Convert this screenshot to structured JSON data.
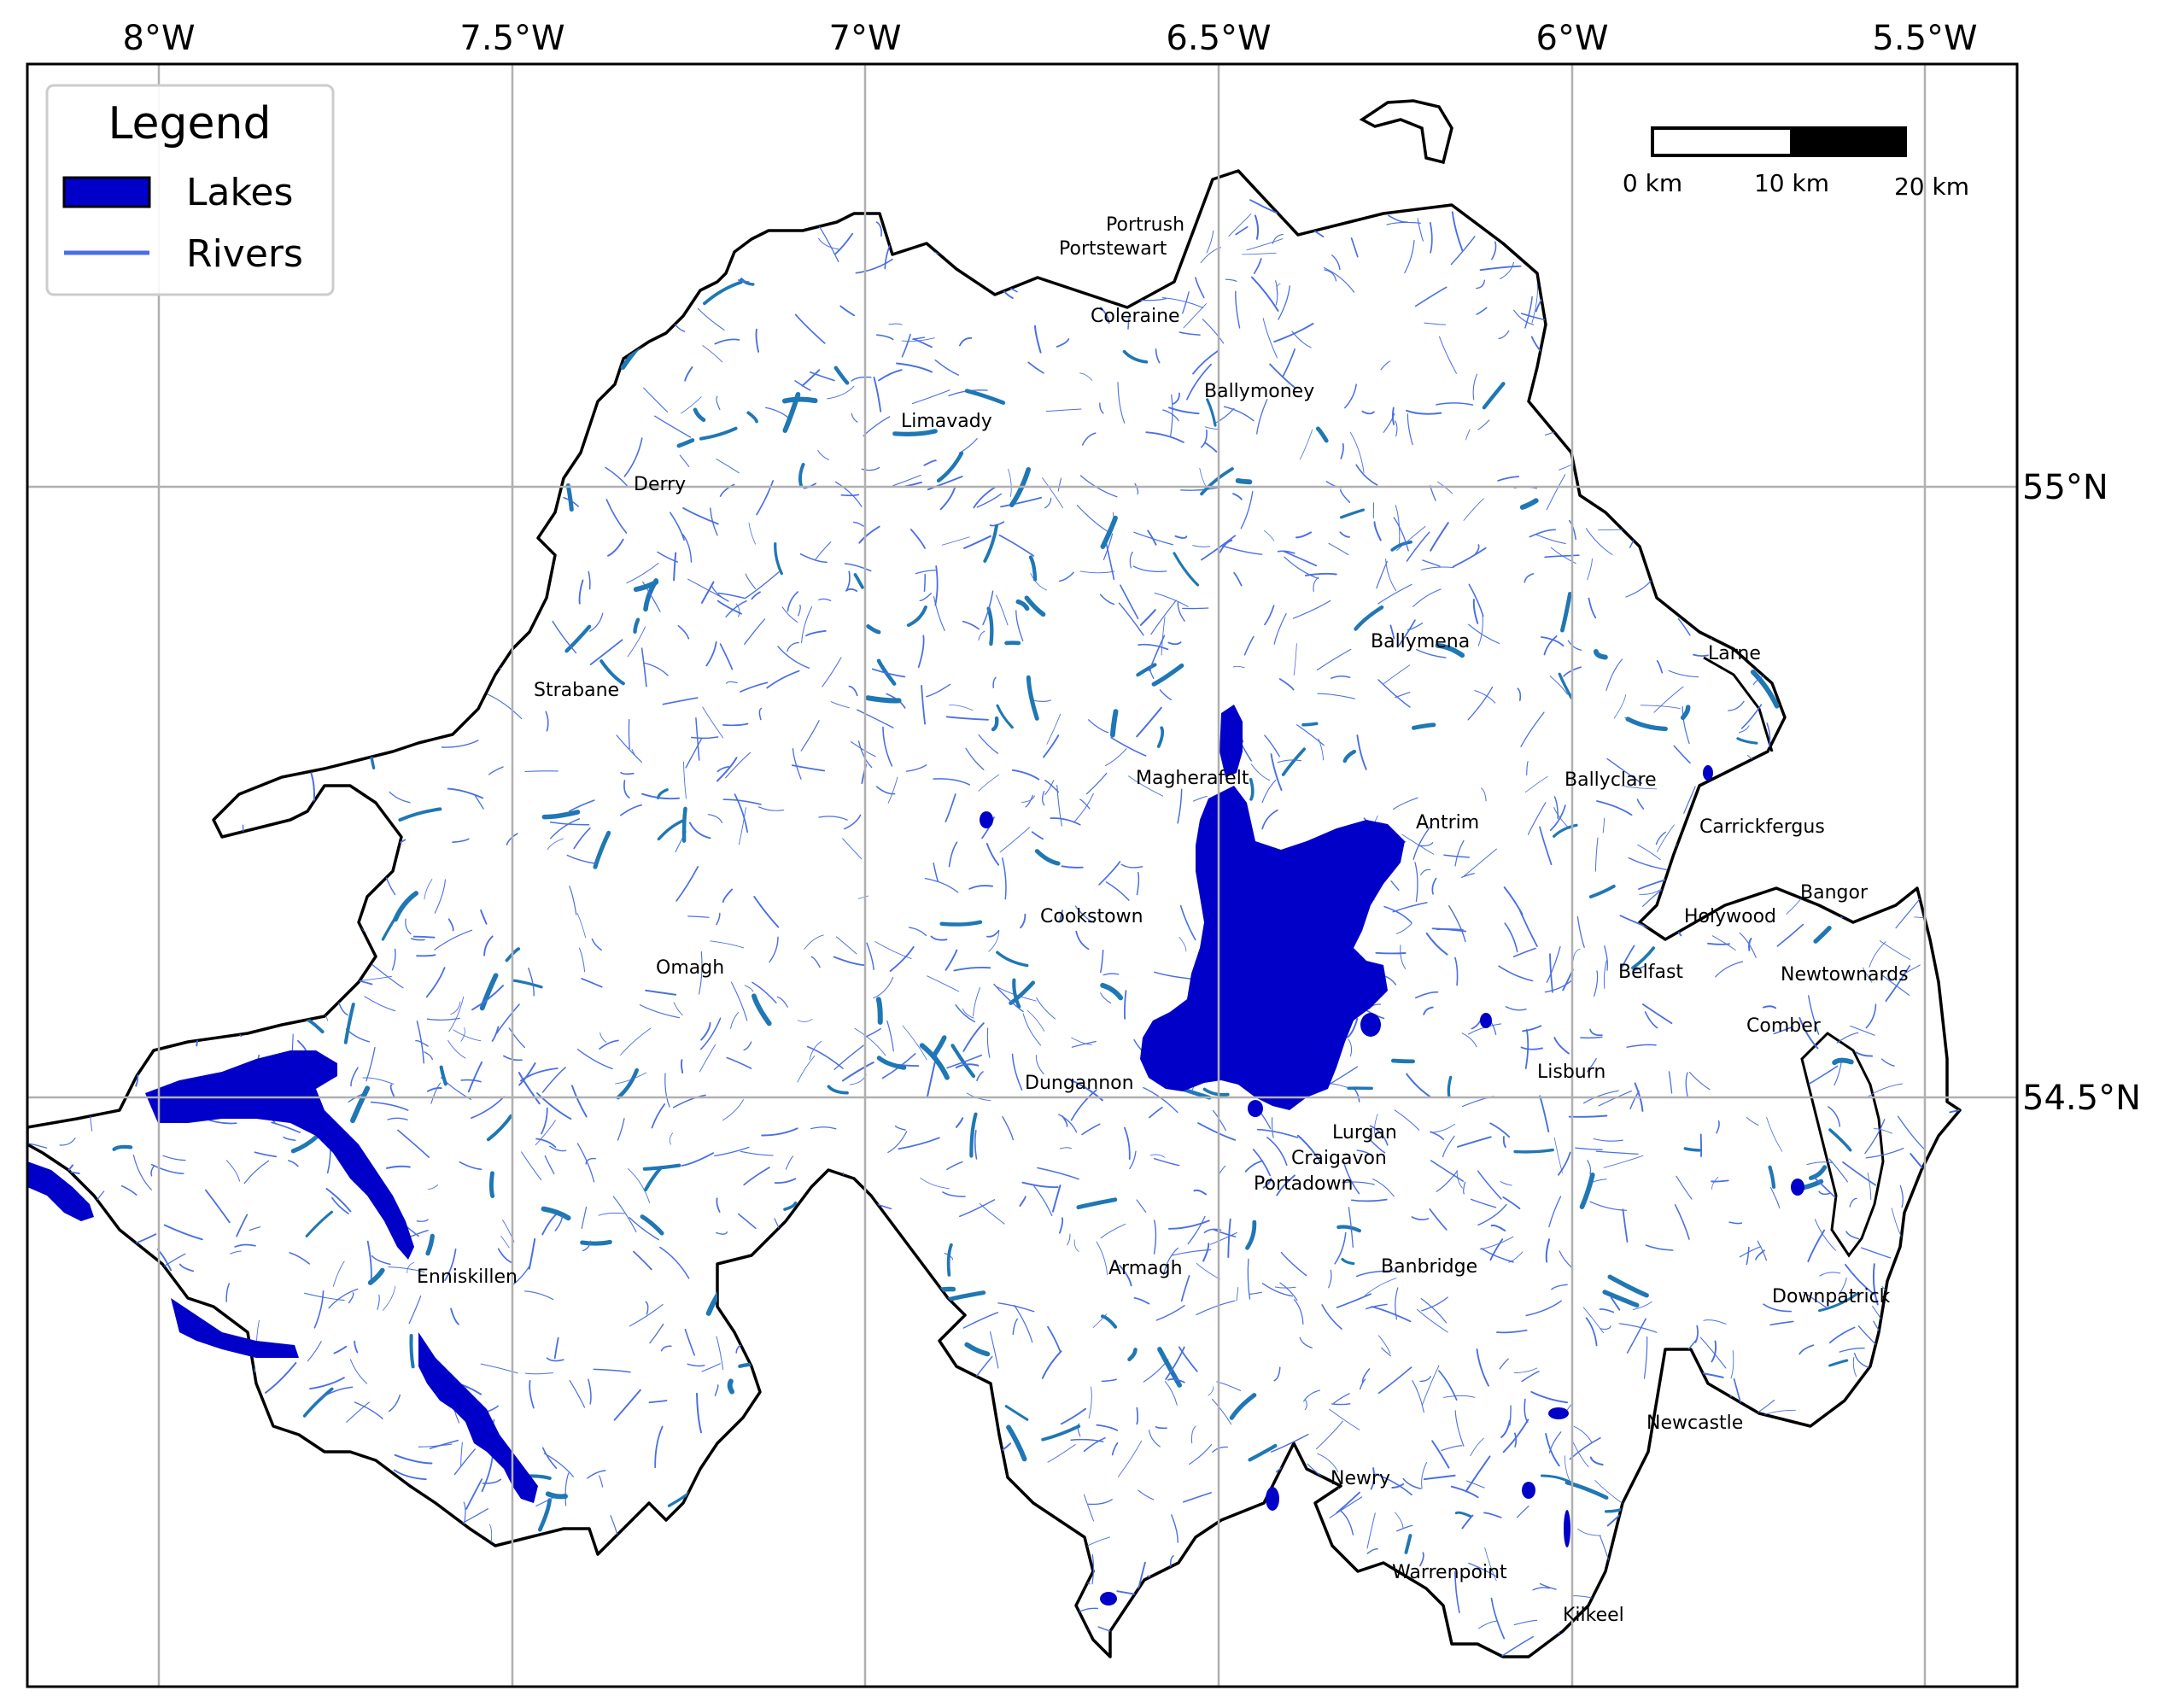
{
  "colors": {
    "lake": "#0000c8",
    "river": "#4a6fe3",
    "river_dark": "#1f77b4",
    "coast": "#000000",
    "grid": "#b0b0b0"
  },
  "axes": {
    "longitude_labels": [
      "8°W",
      "7.5°W",
      "7°W",
      "6.5°W",
      "6°W",
      "5.5°W"
    ],
    "latitude_labels": [
      "55°N",
      "54.5°N"
    ]
  },
  "legend": {
    "title": "Legend",
    "items": [
      {
        "label": "Lakes",
        "symbol": "lake-swatch"
      },
      {
        "label": "Rivers",
        "symbol": "river-line"
      }
    ]
  },
  "scale_bar": {
    "labels": [
      "0 km",
      "10 km",
      "20 km"
    ]
  },
  "towns": [
    "Portrush",
    "Portstewart",
    "Coleraine",
    "Ballymoney",
    "Limavady",
    "Derry",
    "Ballymena",
    "Larne",
    "Strabane",
    "Magherafelt",
    "Ballyclare",
    "Antrim",
    "Carrickfergus",
    "Bangor",
    "Holywood",
    "Cookstown",
    "Belfast",
    "Newtownards",
    "Omagh",
    "Comber",
    "Dungannon",
    "Lisburn",
    "Lurgan",
    "Craigavon",
    "Portadown",
    "Enniskillen",
    "Armagh",
    "Banbridge",
    "Downpatrick",
    "Newcastle",
    "Newry",
    "Warrenpoint",
    "Kilkeel"
  ]
}
